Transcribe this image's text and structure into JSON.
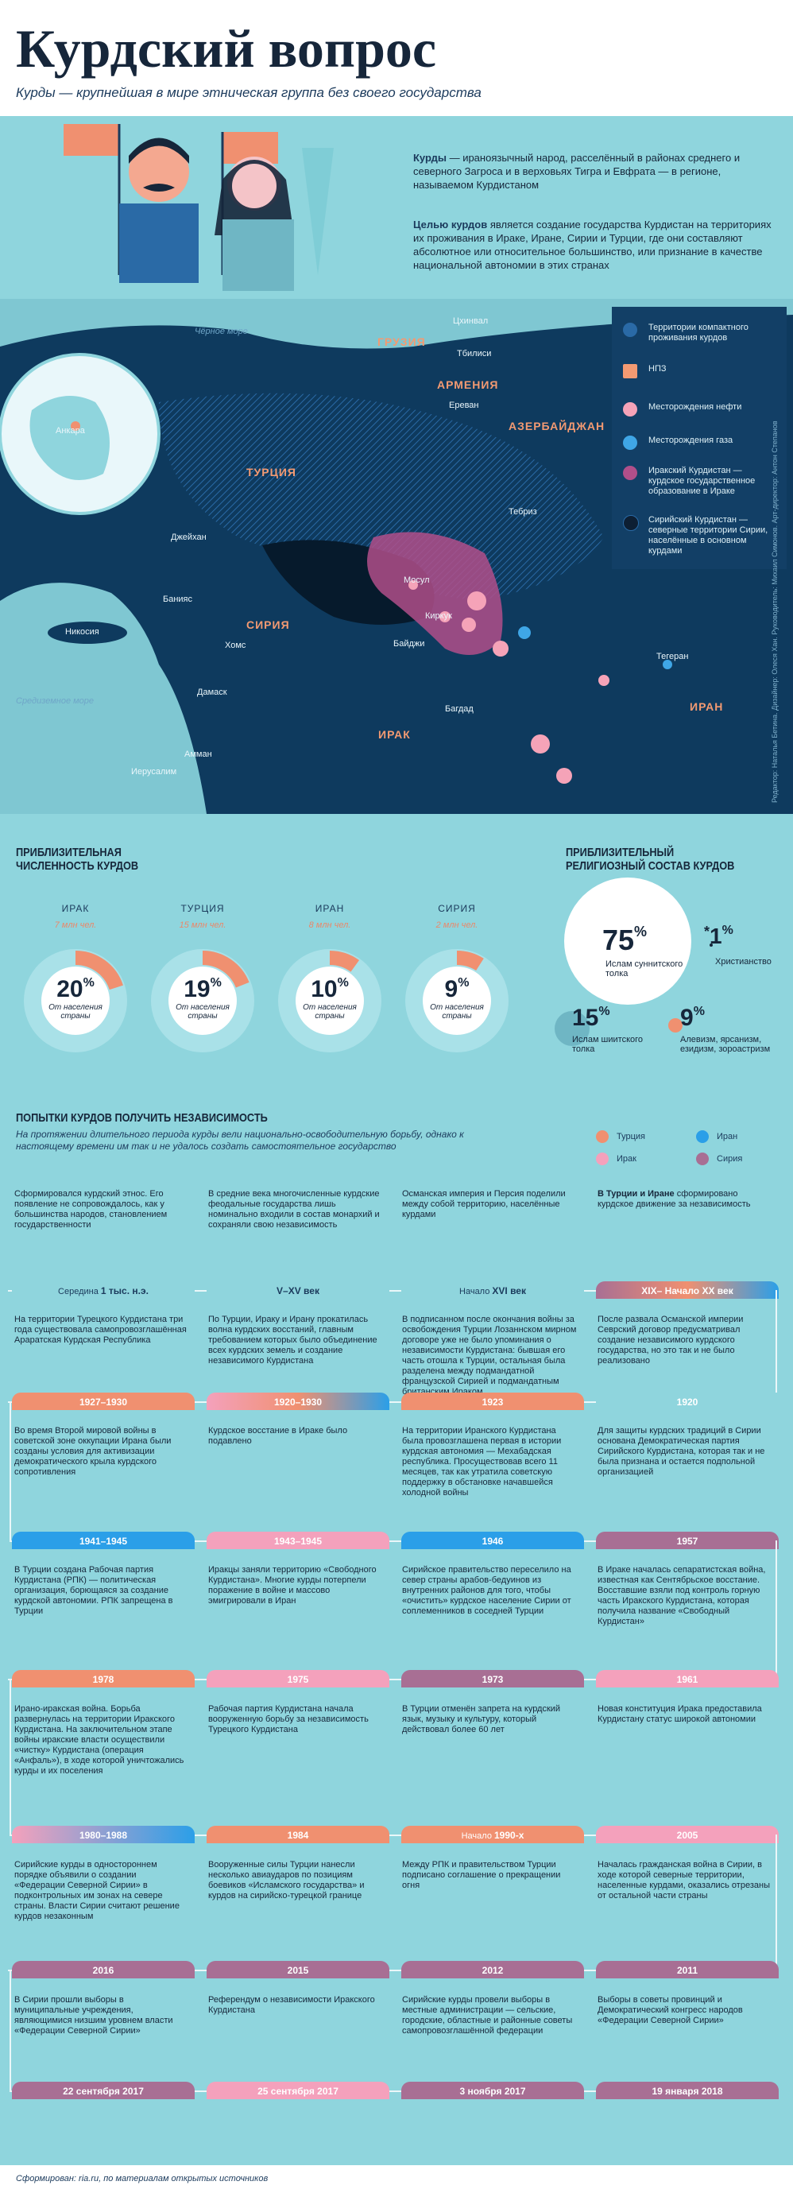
{
  "header": {
    "title": "Курдский вопрос",
    "subtitle": "Курды — крупнейшая в мире этническая группа без своего государства"
  },
  "intro": {
    "p1_bold": "Курды",
    "p1": " — ираноязычный народ, расселённый в районах среднего и северного Загроса и в верховьях Тигра и Евфрата — в регионе, называемом Курдистаном",
    "p2_bold": "Целью курдов",
    "p2": " является создание государства Курдистан на территориях их проживания в Ираке, Иране, Сирии и Турции, где они составляют абсолютное или относительное большинство, или признание в качестве национальной автономии в этих странах"
  },
  "map": {
    "countries": [
      "ГРУЗИЯ",
      "АРМЕНИЯ",
      "АЗЕРБАЙДЖАН",
      "ТУРЦИЯ",
      "СИРИЯ",
      "ИРАК",
      "ИРАН"
    ],
    "cities": [
      "Цхинвал",
      "Тбилиси",
      "Ереван",
      "Тебриз",
      "Анкара",
      "Джейхан",
      "Банияс",
      "Хомс",
      "Никосия",
      "Дамаск",
      "Амман",
      "Иерусалим",
      "Мосул",
      "Киркук",
      "Байджи",
      "Багдад",
      "Тегеран"
    ],
    "seas": [
      "Чёрное море",
      "Средиземное море"
    ],
    "legend": [
      {
        "label": "Территории компактного проживания курдов",
        "color": "#2a6aa6"
      },
      {
        "label": "НПЗ",
        "color": "#f39a72"
      },
      {
        "label": "Месторождения нефти",
        "color": "#f5a3b8"
      },
      {
        "label": "Месторождения газа",
        "color": "#3fa6e6"
      },
      {
        "label": "Иракский Курдистан — курдское государственное образование в Ираке",
        "color": "#b04f8a"
      },
      {
        "label": "Сирийский Курдистан — северные территории Сирии, населённые в основном курдами",
        "color": "#0d1f33"
      }
    ],
    "credits": "Редактор: Наталья Бетина. Дизайнер: Олеся Хан. Руководитель: Михаил Симонов. Арт-директор: Антон Степанов"
  },
  "population": {
    "heading": "Приблизительная численность курдов",
    "countries": [
      {
        "name": "ИРАК",
        "pop": "7 млн чел.",
        "pct": "20",
        "fill": 0.2
      },
      {
        "name": "ТУРЦИЯ",
        "pop": "15 млн чел.",
        "pct": "19",
        "fill": 0.19
      },
      {
        "name": "ИРАН",
        "pop": "8 млн чел.",
        "pct": "10",
        "fill": 0.1
      },
      {
        "name": "СИРИЯ",
        "pop": "2 млн чел.",
        "pct": "9",
        "fill": 0.09
      }
    ],
    "pct_sign": "%",
    "caption": "От населения страны"
  },
  "religion": {
    "heading": "Приблизительный религиозный состав курдов",
    "items": [
      {
        "pct": "75",
        "label": "Ислам суннитского толка"
      },
      {
        "pct": "15",
        "label": "Ислам шиитского толка"
      },
      {
        "pct": "1",
        "prefix": "*",
        "label": "Христианство"
      },
      {
        "pct": "9",
        "label": "Алевизм, ярсанизм, езидизм, зороастризм"
      }
    ]
  },
  "timeline": {
    "heading": "Попытки курдов получить независимость",
    "intro": "На протяжении длительного периода курды вели национально-освободительную борьбу, однако к настоящему времени им так и не удалось создать самостоятельное государство",
    "legend": [
      {
        "label": "Турция",
        "color": "#f09070"
      },
      {
        "label": "Иран",
        "color": "#2b9fe8"
      },
      {
        "label": "Ирак",
        "color": "#f4a1bc"
      },
      {
        "label": "Сирия",
        "color": "#a86f94"
      }
    ],
    "row0": [
      {
        "text": "Сформировался курдский этнос. Его появление не сопровождалось, как у большинства народов, становлением государственности"
      },
      {
        "text": "В средние века многочисленные курдские феодальные государства лишь номинально входили в состав монархий и сохраняли свою независимость"
      },
      {
        "text": "Османская империя и Персия поделили между собой территорию, населённые курдами"
      },
      {
        "bold": "В Турции и Иране",
        "text": " сформировано курдское движение за независимость"
      }
    ],
    "dates": [
      [
        {
          "pre": "Середина ",
          "d": "1 тыс. н.э."
        },
        {
          "d": "V–XV век"
        },
        {
          "pre": "Начало ",
          "d": "XVI век"
        },
        {
          "d": "XIX– Начало XX век"
        }
      ],
      [
        {
          "d": "1927–1930"
        },
        {
          "d": "1920–1930"
        },
        {
          "d": "1923"
        },
        {
          "d": "1920"
        }
      ],
      [
        {
          "d": "1941–1945"
        },
        {
          "d": "1943–1945"
        },
        {
          "d": "1946"
        },
        {
          "d": "1957"
        }
      ],
      [
        {
          "d": "1978"
        },
        {
          "d": "1975"
        },
        {
          "d": "1973"
        },
        {
          "d": "1961"
        }
      ],
      [
        {
          "d": "1980–1988"
        },
        {
          "d": "1984"
        },
        {
          "pre": "Начало ",
          "d": "1990-х"
        },
        {
          "d": "2005"
        }
      ],
      [
        {
          "d": "2016"
        },
        {
          "d": "2015"
        },
        {
          "d": "2012"
        },
        {
          "d": "2011"
        }
      ],
      [
        {
          "d": "22 сентября 2017"
        },
        {
          "d": "25 сентября 2017"
        },
        {
          "d": "3 ноября 2017"
        },
        {
          "d": "19 января 2018"
        }
      ]
    ],
    "rows": [
      [
        "На территории Турецкого Курдистана три года существовала самопровозглашённая Араратская Курдская Республика",
        "По Турции, Ираку и Ирану прокатилась волна курдских восстаний, главным требованием которых было объединение всех курдских земель и создание независимого Курдистана",
        "В подписанном после окончания войны за освобождения Турции Лозаннском мирном договоре уже не было упоминания о независимости Курдистана: бывшая его часть отошла к Турции, остальная была разделена между подмандатной французской Сирией и подмандатным британским Ираком",
        "После развала Османской империи Севрский договор предусматривал создание независимого курдского государства, но это так и не было реализовано"
      ],
      [
        "Во время Второй мировой войны в советской зоне оккупации Ирана были созданы условия для активизации демократического крыла курдского сопротивления",
        "Курдское восстание в Ираке было подавлено",
        "На территории Иранского Курдистана была провозглашена первая в истории курдская автономия — Мехабадская республика. Просуществовав всего 11 месяцев, так как утратила советскую поддержку в обстановке начавшейся холодной войны",
        "Для защиты курдских традиций в Сирии основана Демократическая партия Сирийского Курдистана, которая так и не была признана и остается подпольной организацией"
      ],
      [
        "В Турции создана Рабочая партия Курдистана (РПК) — политическая организация, борющаяся за создание курдской автономии. РПК запрещена в Турции",
        "Иракцы заняли территорию «Свободного Курдистана». Многие курды потерпели поражение в войне и массово эмигрировали в Иран",
        "Сирийское правительство переселило на север страны арабов-бедуинов из внутренних районов для того, чтобы «очистить» курдское население Сирии от соплеменников в соседней Турции",
        "В Ираке началась сепаратистская война, известная как Сентябрьское восстание. Восставшие взяли под контроль горную часть Иракского Курдистана, которая получила название «Свободный Курдистан»"
      ],
      [
        "Ирано-иракская война. Борьба развернулась на территории Иракского Курдистана. На заключительном этапе войны иракские власти осуществили «чистку» Курдистана (операция «Анфаль»), в ходе которой уничтожались курды и их поселения",
        "Рабочая партия Курдистана начала вооруженную борьбу за независимость Турецкого Курдистана",
        "В Турции отменён запрета на курдский язык, музыку и культуру, который действовал более 60 лет",
        "Новая конституция Ирака предоставила Курдистану статус широкой автономии"
      ],
      [
        "Сирийские курды в одностороннем порядке объявили о создании «Федерации Северной Сирии» в подконтрольных им зонах на севере страны. Власти Сирии считают решение курдов незаконным",
        "Вооруженные силы Турции нанесли несколько авиаударов по позициям боевиков «Исламского государства» и курдов на сирийско-турецкой границе",
        "Между РПК и правительством Турции подписано соглашение о прекращении огня",
        "Началась гражданская война в Сирии, в ходе которой северные территории, населенные курдами, оказались отрезаны от остальной части страны"
      ],
      [
        "В Сирии прошли выборы в муниципальные учреждения, являющимися низшим уровнем власти «Федерации Северной Сирии»",
        "Референдум о независимости Иракского Курдистана",
        "Сирийские курды провели выборы в местные администрации — сельские, городские, областные и районные советы самопровозглашённой федерации",
        "Выборы в советы провинций и Демократический конгресс народов «Федерации Северной Сирии»"
      ]
    ],
    "source": "Сформирован: ria.ru, по материалам открытых источников"
  }
}
